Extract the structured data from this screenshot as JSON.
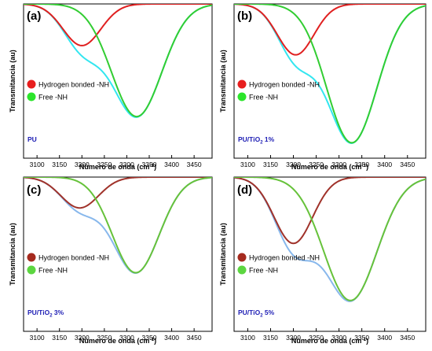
{
  "colors": {
    "axis": "#000000",
    "sample_label": "#1c1cb4"
  },
  "chart_data": [
    {
      "type": "line",
      "panel_label": "(a)",
      "sample": "PU",
      "xlabel": "Número de onda (cm",
      "xlabel_sup": "-1",
      "xlabel_end": ")",
      "ylabel": "Transmitancia (au)",
      "xlim": [
        3070,
        3490
      ],
      "ylim": [
        0,
        1
      ],
      "xticks": [
        3100,
        3150,
        3200,
        3250,
        3300,
        3350,
        3400,
        3450
      ],
      "legend": {
        "position": "left-middle"
      },
      "series": [
        {
          "name": "Hydrogen bonded -NH",
          "role": "component",
          "color": "#e02020",
          "marker_color": "#e81e1e",
          "center": 3200,
          "width": 42,
          "amplitude": 0.27
        },
        {
          "name": "Free -NH",
          "role": "component",
          "color": "#32cd32",
          "marker_color": "#2be52b",
          "center": 3322,
          "width": 56,
          "amplitude": 0.73
        },
        {
          "role": "envelope",
          "color": "#33e6f0"
        }
      ]
    },
    {
      "type": "line",
      "panel_label": "(b)",
      "sample": "PU/TiO",
      "sample_sub": "2",
      "sample_end": " 1%",
      "xlabel": "Número de onda (cm",
      "xlabel_sup": "-1",
      "xlabel_end": ")",
      "ylabel": "Transmitancia (au)",
      "xlim": [
        3070,
        3490
      ],
      "ylim": [
        0,
        1
      ],
      "xticks": [
        3100,
        3150,
        3200,
        3250,
        3300,
        3350,
        3400,
        3450
      ],
      "legend": {
        "position": "left-middle"
      },
      "series": [
        {
          "name": "Hydrogen bonded -NH",
          "role": "component",
          "color": "#e02020",
          "marker_color": "#e81e1e",
          "center": 3205,
          "width": 40,
          "amplitude": 0.33
        },
        {
          "name": "Free -NH",
          "role": "component",
          "color": "#32cd32",
          "marker_color": "#2be52b",
          "center": 3328,
          "width": 55,
          "amplitude": 0.9
        },
        {
          "role": "envelope",
          "color": "#33e6f0"
        }
      ]
    },
    {
      "type": "line",
      "panel_label": "(c)",
      "sample": "PU/TiO",
      "sample_sub": "2",
      "sample_end": " 3%",
      "xlabel": "Número de onda (cm",
      "xlabel_sup": "-1",
      "xlabel_end": ")",
      "ylabel": "Transmitancia (au)",
      "xlim": [
        3070,
        3490
      ],
      "ylim": [
        0,
        1
      ],
      "xticks": [
        3100,
        3150,
        3200,
        3250,
        3300,
        3350,
        3400,
        3450
      ],
      "legend": {
        "position": "left-middle"
      },
      "series": [
        {
          "name": "Hydrogen bonded -NH",
          "role": "component",
          "color": "#a0322a",
          "marker_color": "#a52a1e",
          "center": 3195,
          "width": 42,
          "amplitude": 0.2
        },
        {
          "name": "Free -NH",
          "role": "component",
          "color": "#66c23a",
          "marker_color": "#5cd640",
          "center": 3320,
          "width": 52,
          "amplitude": 0.62
        },
        {
          "role": "envelope",
          "color": "#88b8ec"
        }
      ]
    },
    {
      "type": "line",
      "panel_label": "(d)",
      "sample": "PU/TiO",
      "sample_sub": "2",
      "sample_end": " 5%",
      "xlabel": "Número de onda (cm",
      "xlabel_sup": "-1",
      "xlabel_end": ")",
      "ylabel": "Transmitancia (au)",
      "xlim": [
        3070,
        3490
      ],
      "ylim": [
        0,
        1
      ],
      "xticks": [
        3100,
        3150,
        3200,
        3250,
        3300,
        3350,
        3400,
        3450
      ],
      "legend": {
        "position": "left-middle"
      },
      "series": [
        {
          "name": "Hydrogen bonded -NH",
          "role": "component",
          "color": "#a0322a",
          "marker_color": "#a52a1e",
          "center": 3200,
          "width": 42,
          "amplitude": 0.43
        },
        {
          "name": "Free -NH",
          "role": "component",
          "color": "#66c23a",
          "marker_color": "#5cd640",
          "center": 3325,
          "width": 58,
          "amplitude": 0.8
        },
        {
          "role": "envelope",
          "color": "#88b8ec"
        }
      ]
    }
  ]
}
